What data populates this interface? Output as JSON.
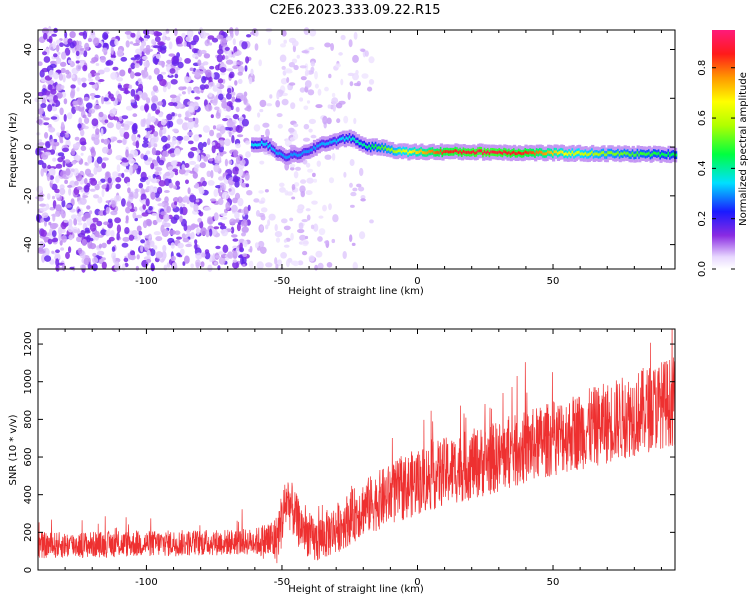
{
  "title": "C2E6.2023.333.09.22.R15",
  "chart_data": [
    {
      "type": "heatmap",
      "xlabel": "Height of straight line (km)",
      "ylabel": "Frequency (Hz)",
      "xlim": [
        -140,
        95
      ],
      "ylim": [
        -50,
        48
      ],
      "xticks": [
        -100,
        -50,
        0,
        50
      ],
      "yticks": [
        -40,
        -20,
        0,
        20,
        40
      ],
      "grid": false,
      "colorbar": {
        "label": "Normalized spectral amplitude",
        "range": [
          0,
          0.95
        ],
        "ticks": [
          0.0,
          0.2,
          0.4,
          0.6,
          0.8
        ]
      },
      "ridge": {
        "description_points": [
          [
            -60,
            1
          ],
          [
            -57,
            1.5
          ],
          [
            -54,
            0
          ],
          [
            -51,
            -3
          ],
          [
            -48,
            -4
          ],
          [
            -44,
            -3
          ],
          [
            -40,
            -2
          ],
          [
            -36,
            1
          ],
          [
            -32,
            2
          ],
          [
            -28,
            3
          ],
          [
            -25,
            4
          ],
          [
            -22,
            2
          ],
          [
            -18,
            0
          ],
          [
            -14,
            0
          ],
          [
            -10,
            -1
          ],
          [
            -5,
            -2
          ],
          [
            0,
            -2
          ],
          [
            20,
            -2
          ],
          [
            50,
            -2.5
          ],
          [
            92,
            -3
          ]
        ],
        "amplitude_points": [
          [
            -60,
            0.35
          ],
          [
            -50,
            0.3
          ],
          [
            -40,
            0.3
          ],
          [
            -30,
            0.32
          ],
          [
            -20,
            0.4
          ],
          [
            -10,
            0.55
          ],
          [
            0,
            0.7
          ],
          [
            10,
            0.85
          ],
          [
            25,
            0.9
          ],
          [
            40,
            0.85
          ],
          [
            55,
            0.65
          ],
          [
            70,
            0.55
          ],
          [
            92,
            0.45
          ]
        ]
      }
    },
    {
      "type": "line",
      "xlabel": "Height of straight line (km)",
      "ylabel": "SNR (10 * v/v)",
      "xlim": [
        -140,
        95
      ],
      "ylim": [
        0,
        1280
      ],
      "xticks": [
        -100,
        -50,
        0,
        50
      ],
      "yticks": [
        0,
        200,
        400,
        600,
        800,
        1000,
        1200
      ],
      "grid": false,
      "line_color": "#ee3030",
      "trend": [
        [
          -140,
          130
        ],
        [
          -120,
          135
        ],
        [
          -100,
          140
        ],
        [
          -80,
          145
        ],
        [
          -60,
          150
        ],
        [
          -52,
          160
        ],
        [
          -48,
          380
        ],
        [
          -44,
          250
        ],
        [
          -38,
          150
        ],
        [
          -30,
          220
        ],
        [
          -20,
          330
        ],
        [
          -10,
          400
        ],
        [
          0,
          470
        ],
        [
          10,
          520
        ],
        [
          20,
          560
        ],
        [
          30,
          600
        ],
        [
          40,
          650
        ],
        [
          50,
          700
        ],
        [
          60,
          740
        ],
        [
          70,
          780
        ],
        [
          80,
          830
        ],
        [
          90,
          880
        ],
        [
          95,
          900
        ]
      ],
      "noise_amplitude": [
        [
          -140,
          70
        ],
        [
          -60,
          70
        ],
        [
          -50,
          150
        ],
        [
          -40,
          120
        ],
        [
          0,
          180
        ],
        [
          50,
          200
        ],
        [
          95,
          240
        ]
      ]
    }
  ]
}
